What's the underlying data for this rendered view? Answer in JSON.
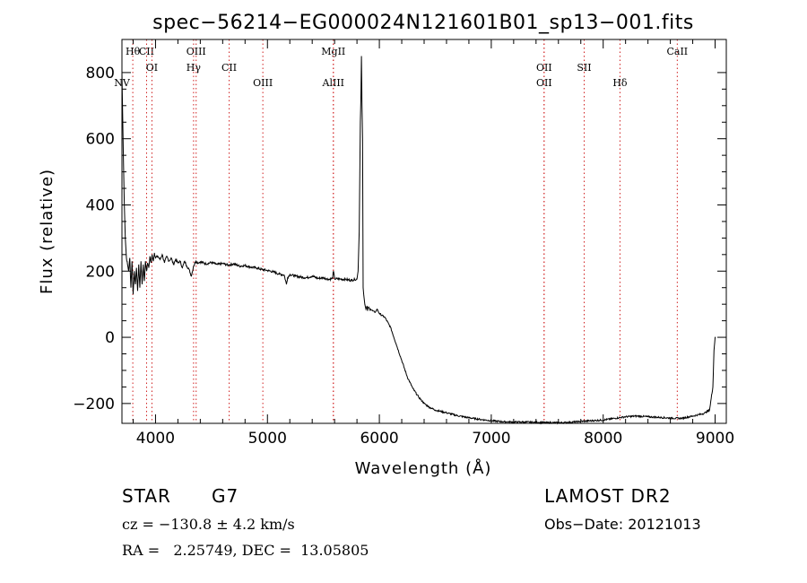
{
  "chart_data": {
    "type": "line",
    "title": "spec−56214−EG000024N121601B01_sp13−001.fits",
    "xlabel": "Wavelength (Å)",
    "ylabel": "Flux (relative)",
    "xlim": [
      3700,
      9100
    ],
    "ylim": [
      -260,
      900
    ],
    "x_ticks": [
      4000,
      5000,
      6000,
      7000,
      8000,
      9000
    ],
    "y_ticks": [
      -200,
      0,
      200,
      400,
      600,
      800
    ],
    "grid": false,
    "series": [
      {
        "x": [
          3700,
          3705,
          3712,
          3720,
          3730,
          3740,
          3750,
          3760,
          3770,
          3780,
          3790,
          3800,
          3810,
          3820,
          3830,
          3840,
          3850,
          3860,
          3870,
          3880,
          3890,
          3900,
          3910,
          3920,
          3930,
          3940,
          3950,
          3960,
          3970,
          3980,
          3990,
          4000,
          4020,
          4040,
          4060,
          4080,
          4100,
          4120,
          4140,
          4160,
          4180,
          4200,
          4220,
          4240,
          4260,
          4280,
          4300,
          4320,
          4340,
          4360,
          4380,
          4400,
          4450,
          4500,
          4550,
          4600,
          4650,
          4700,
          4750,
          4800,
          4850,
          4900,
          4950,
          5000,
          5050,
          5100,
          5150,
          5170,
          5180,
          5200,
          5250,
          5300,
          5350,
          5400,
          5450,
          5500,
          5550,
          5580,
          5590,
          5600,
          5650,
          5700,
          5750,
          5780,
          5800,
          5810,
          5820,
          5830,
          5835,
          5840,
          5845,
          5850,
          5855,
          5860,
          5870,
          5880,
          5890,
          5895,
          5900,
          5920,
          5940,
          5960,
          5980,
          6000,
          6050,
          6100,
          6150,
          6200,
          6250,
          6300,
          6350,
          6400,
          6450,
          6500,
          6600,
          6700,
          6800,
          6900,
          7000,
          7100,
          7200,
          7300,
          7400,
          7500,
          7600,
          7700,
          7800,
          7900,
          8000,
          8100,
          8200,
          8300,
          8400,
          8500,
          8600,
          8700,
          8800,
          8900,
          8950,
          8980,
          8990,
          9000,
          9005
        ],
        "y": [
          800,
          700,
          560,
          420,
          300,
          240,
          220,
          200,
          240,
          150,
          230,
          130,
          200,
          160,
          210,
          140,
          220,
          150,
          230,
          160,
          220,
          170,
          230,
          200,
          225,
          210,
          245,
          225,
          250,
          230,
          255,
          240,
          245,
          235,
          250,
          225,
          245,
          230,
          240,
          220,
          235,
          225,
          230,
          210,
          230,
          215,
          205,
          185,
          215,
          230,
          225,
          228,
          222,
          226,
          220,
          223,
          218,
          222,
          215,
          217,
          212,
          210,
          205,
          202,
          198,
          192,
          188,
          160,
          180,
          190,
          185,
          182,
          180,
          185,
          178,
          180,
          175,
          178,
          200,
          177,
          176,
          175,
          172,
          175,
          176,
          200,
          320,
          650,
          720,
          850,
          700,
          600,
          150,
          130,
          100,
          85,
          95,
          80,
          90,
          85,
          80,
          75,
          85,
          72,
          60,
          30,
          -20,
          -70,
          -120,
          -155,
          -180,
          -200,
          -212,
          -220,
          -228,
          -237,
          -243,
          -248,
          -252,
          -255,
          -256,
          -256,
          -257,
          -258,
          -258,
          -257,
          -254,
          -252,
          -250,
          -245,
          -240,
          -238,
          -240,
          -242,
          -244,
          -245,
          -238,
          -230,
          -220,
          -150,
          -40,
          0,
          0
        ]
      }
    ],
    "lines": [
      {
        "label": "Hθ",
        "x": 3797,
        "row": 1
      },
      {
        "label": "CII",
        "x": 3920,
        "row": 1
      },
      {
        "label": "OIII",
        "x": 4363,
        "row": 1
      },
      {
        "label": "MgII",
        "x": 5589,
        "row": 1
      },
      {
        "label": "CaII",
        "x": 8662,
        "row": 1
      },
      {
        "label": "OI",
        "x": 3968,
        "row": 2
      },
      {
        "label": "Hγ",
        "x": 4340,
        "row": 2
      },
      {
        "label": "CII",
        "x": 4658,
        "row": 2
      },
      {
        "label": "OII",
        "x": 7472,
        "row": 2
      },
      {
        "label": "SII",
        "x": 7830,
        "row": 2
      },
      {
        "label": "NV",
        "x": 3700,
        "row": 3
      },
      {
        "label": "OIII",
        "x": 4959,
        "row": 3
      },
      {
        "label": "AlIII",
        "x": 5589,
        "row": 3
      },
      {
        "label": "OII",
        "x": 7472,
        "row": 3
      },
      {
        "label": "Hδ",
        "x": 8150,
        "row": 3
      }
    ]
  },
  "info": {
    "object_class": "STAR",
    "subclass": "G7",
    "survey": "LAMOST DR2",
    "cz": "cz = −130.8 ± 4.2 km/s",
    "obs_date": "Obs−Date: 20121013",
    "coords": "RA =   2.25749, DEC =  13.05805"
  }
}
